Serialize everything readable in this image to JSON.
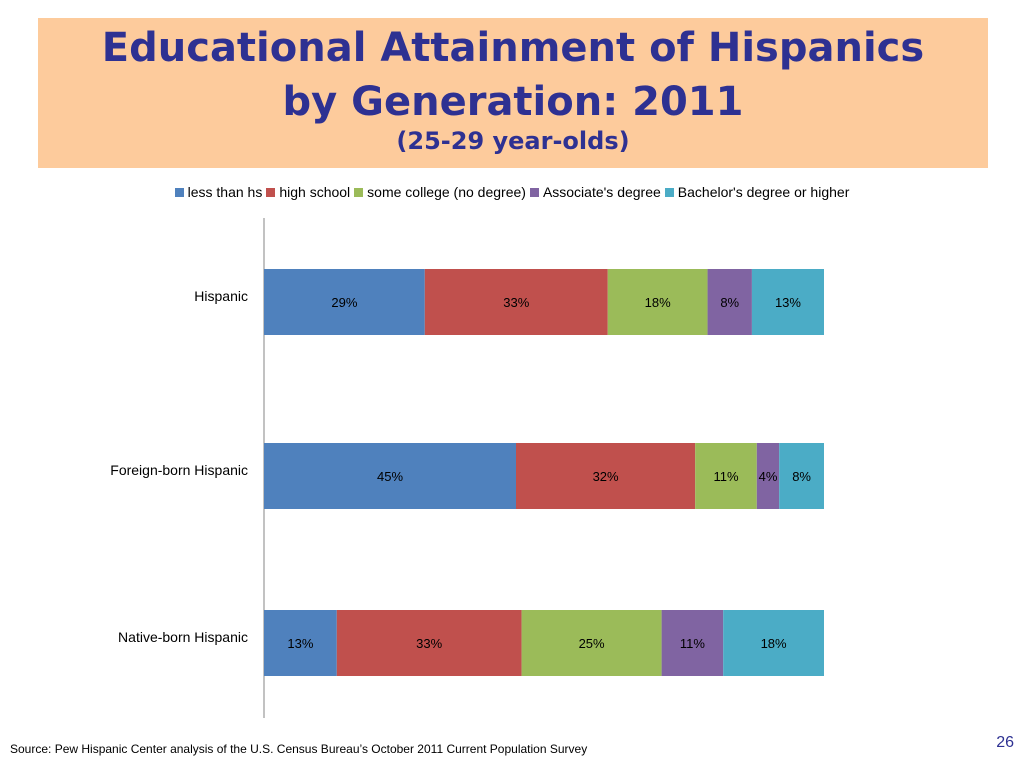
{
  "title": {
    "line1": "Educational Attainment of Hispanics",
    "line2": "by Generation: 2011",
    "subtitle": "(25-29 year-olds)"
  },
  "chart_data": {
    "type": "bar",
    "orientation": "horizontal",
    "stacked": true,
    "categories": [
      "Hispanic",
      "Foreign-born Hispanic",
      "Native-born Hispanic"
    ],
    "series": [
      {
        "name": "less than hs",
        "color": "#4f81bd",
        "values": [
          29,
          45,
          13
        ],
        "labels": [
          "29%",
          "45%",
          "13%"
        ]
      },
      {
        "name": "high school",
        "color": "#c0504d",
        "values": [
          33,
          32,
          33
        ],
        "labels": [
          "33%",
          "32%",
          "33%"
        ]
      },
      {
        "name": "some college (no degree)",
        "color": "#9bbb59",
        "values": [
          18,
          11,
          25
        ],
        "labels": [
          "18%",
          "11%",
          "25%"
        ]
      },
      {
        "name": "Associate's degree",
        "color": "#8064a2",
        "values": [
          8,
          4,
          11
        ],
        "labels": [
          "8%",
          "4%",
          "11%"
        ]
      },
      {
        "name": "Bachelor's degree or higher",
        "color": "#4bacc6",
        "values": [
          13,
          8,
          18
        ],
        "labels": [
          "13%",
          "8%",
          "18%"
        ]
      }
    ],
    "xlim": [
      0,
      100
    ],
    "legend_position": "top",
    "grid": false
  },
  "footer": {
    "source": "Source: Pew Hispanic Center analysis of the U.S. Census Bureau’s October 2011 Current Population Survey",
    "page_number": "26"
  }
}
